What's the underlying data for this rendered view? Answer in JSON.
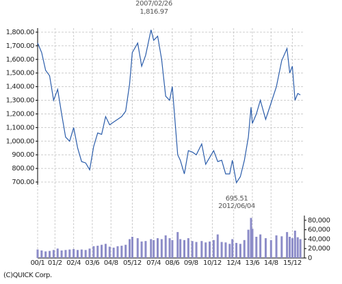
{
  "chart_data": [
    {
      "type": "line",
      "annotations": [
        "2007/02/26",
        "1,816.97",
        "695.51",
        "2012/06/04"
      ],
      "x": [
        "2000/01",
        "2000/04",
        "2000/07",
        "2000/10",
        "2001/01",
        "2001/04",
        "2001/07",
        "2001/10",
        "2002/01",
        "2002/04",
        "2002/07",
        "2002/10",
        "2003/01",
        "2003/04",
        "2003/07",
        "2003/10",
        "2004/01",
        "2004/04",
        "2004/07",
        "2004/10",
        "2005/01",
        "2005/04",
        "2005/07",
        "2005/10",
        "2005/12",
        "2006/04",
        "2006/07",
        "2006/10",
        "2007/02",
        "2007/04",
        "2007/07",
        "2007/10",
        "2008/01",
        "2008/04",
        "2008/06",
        "2008/10",
        "2008/12",
        "2009/03",
        "2009/06",
        "2009/09",
        "2009/12",
        "2010/04",
        "2010/07",
        "2010/10",
        "2011/01",
        "2011/04",
        "2011/07",
        "2011/10",
        "2012/01",
        "2012/03",
        "2012/06",
        "2012/09",
        "2012/12",
        "2013/03",
        "2013/05",
        "2013/06",
        "2013/09",
        "2013/12",
        "2014/04",
        "2014/08",
        "2014/12",
        "2015/04",
        "2015/08",
        "2015/10",
        "2015/12",
        "2016/02",
        "2016/04",
        "2016/06"
      ],
      "values": [
        1720,
        1650,
        1520,
        1480,
        1300,
        1380,
        1200,
        1030,
        1000,
        1100,
        950,
        850,
        840,
        790,
        960,
        1060,
        1050,
        1180,
        1120,
        1140,
        1160,
        1180,
        1220,
        1420,
        1650,
        1720,
        1550,
        1630,
        1816.97,
        1740,
        1770,
        1600,
        1330,
        1300,
        1400,
        900,
        860,
        760,
        930,
        920,
        900,
        980,
        830,
        880,
        930,
        850,
        860,
        760,
        760,
        860,
        695.51,
        740,
        860,
        1030,
        1250,
        1130,
        1200,
        1300,
        1160,
        1280,
        1400,
        1590,
        1680,
        1500,
        1550,
        1300,
        1350,
        1340
      ],
      "color": "#2a5caa",
      "ylim": [
        680,
        1830
      ],
      "yticks": [
        {
          "value": 700,
          "label": "700.00"
        },
        {
          "value": 800,
          "label": "800.00"
        },
        {
          "value": 900,
          "label": "900.00"
        },
        {
          "value": 1000,
          "label": "1,000.00"
        },
        {
          "value": 1100,
          "label": "1,100.00"
        },
        {
          "value": 1200,
          "label": "1,200.00"
        },
        {
          "value": 1300,
          "label": "1,300.00"
        },
        {
          "value": 1400,
          "label": "1,400.00"
        },
        {
          "value": 1500,
          "label": "1,500.00"
        },
        {
          "value": 1600,
          "label": "1,600.00"
        },
        {
          "value": 1700,
          "label": "1,700.00"
        },
        {
          "value": 1800,
          "label": "1,800.00"
        }
      ],
      "xticks": [
        {
          "value": "2000/01",
          "label": "00/1"
        },
        {
          "value": "2001/02",
          "label": "01/2"
        },
        {
          "value": "2002/04",
          "label": "02/4"
        },
        {
          "value": "2003/06",
          "label": "03/6"
        },
        {
          "value": "2004/08",
          "label": "04/8"
        },
        {
          "value": "2005/12",
          "label": "05/12"
        },
        {
          "value": "2007/04",
          "label": "07/4"
        },
        {
          "value": "2008/06",
          "label": "08/6"
        },
        {
          "value": "2009/08",
          "label": "09/8"
        },
        {
          "value": "2010/12",
          "label": "10/12"
        },
        {
          "value": "2012/04",
          "label": "12/4"
        },
        {
          "value": "2013/06",
          "label": "13/6"
        },
        {
          "value": "2014/08",
          "label": "14/8"
        },
        {
          "value": "2015/12",
          "label": "15/12"
        }
      ],
      "grid": true
    },
    {
      "type": "bar",
      "x": [
        "2000/01",
        "2000/04",
        "2000/07",
        "2000/10",
        "2001/01",
        "2001/04",
        "2001/07",
        "2001/10",
        "2002/01",
        "2002/04",
        "2002/07",
        "2002/10",
        "2003/01",
        "2003/04",
        "2003/07",
        "2003/10",
        "2004/01",
        "2004/04",
        "2004/07",
        "2004/10",
        "2005/01",
        "2005/04",
        "2005/07",
        "2005/10",
        "2005/12",
        "2006/04",
        "2006/07",
        "2006/10",
        "2007/02",
        "2007/04",
        "2007/07",
        "2007/10",
        "2008/01",
        "2008/04",
        "2008/06",
        "2008/10",
        "2008/12",
        "2009/03",
        "2009/06",
        "2009/09",
        "2009/12",
        "2010/04",
        "2010/07",
        "2010/10",
        "2011/01",
        "2011/04",
        "2011/07",
        "2011/10",
        "2012/01",
        "2012/03",
        "2012/06",
        "2012/09",
        "2012/12",
        "2013/03",
        "2013/05",
        "2013/06",
        "2013/09",
        "2013/12",
        "2014/04",
        "2014/08",
        "2014/12",
        "2015/04",
        "2015/08",
        "2015/10",
        "2015/12",
        "2016/02",
        "2016/04",
        "2016/06"
      ],
      "values": [
        18000,
        16000,
        14000,
        15000,
        17000,
        20000,
        16000,
        17000,
        18000,
        19000,
        17000,
        18000,
        17000,
        20000,
        25000,
        26000,
        28000,
        30000,
        24000,
        22000,
        25000,
        26000,
        28000,
        40000,
        45000,
        42000,
        35000,
        36000,
        40000,
        38000,
        42000,
        40000,
        48000,
        42000,
        38000,
        55000,
        40000,
        38000,
        42000,
        36000,
        34000,
        36000,
        33000,
        35000,
        38000,
        50000,
        34000,
        33000,
        30000,
        40000,
        32000,
        30000,
        38000,
        60000,
        85000,
        62000,
        45000,
        50000,
        42000,
        38000,
        48000,
        46000,
        55000,
        45000,
        42000,
        58000,
        44000,
        40000
      ],
      "color": "#8c8cc8",
      "ylim": [
        0,
        90000
      ],
      "yticks": [
        0,
        {
          "value": 20000,
          "label": "20,000"
        },
        {
          "value": 40000,
          "label": "40,000"
        },
        {
          "value": 60000,
          "label": "60,000"
        },
        {
          "value": 80000,
          "label": "80,000"
        }
      ]
    }
  ],
  "footer": "(C)QUICK Corp."
}
